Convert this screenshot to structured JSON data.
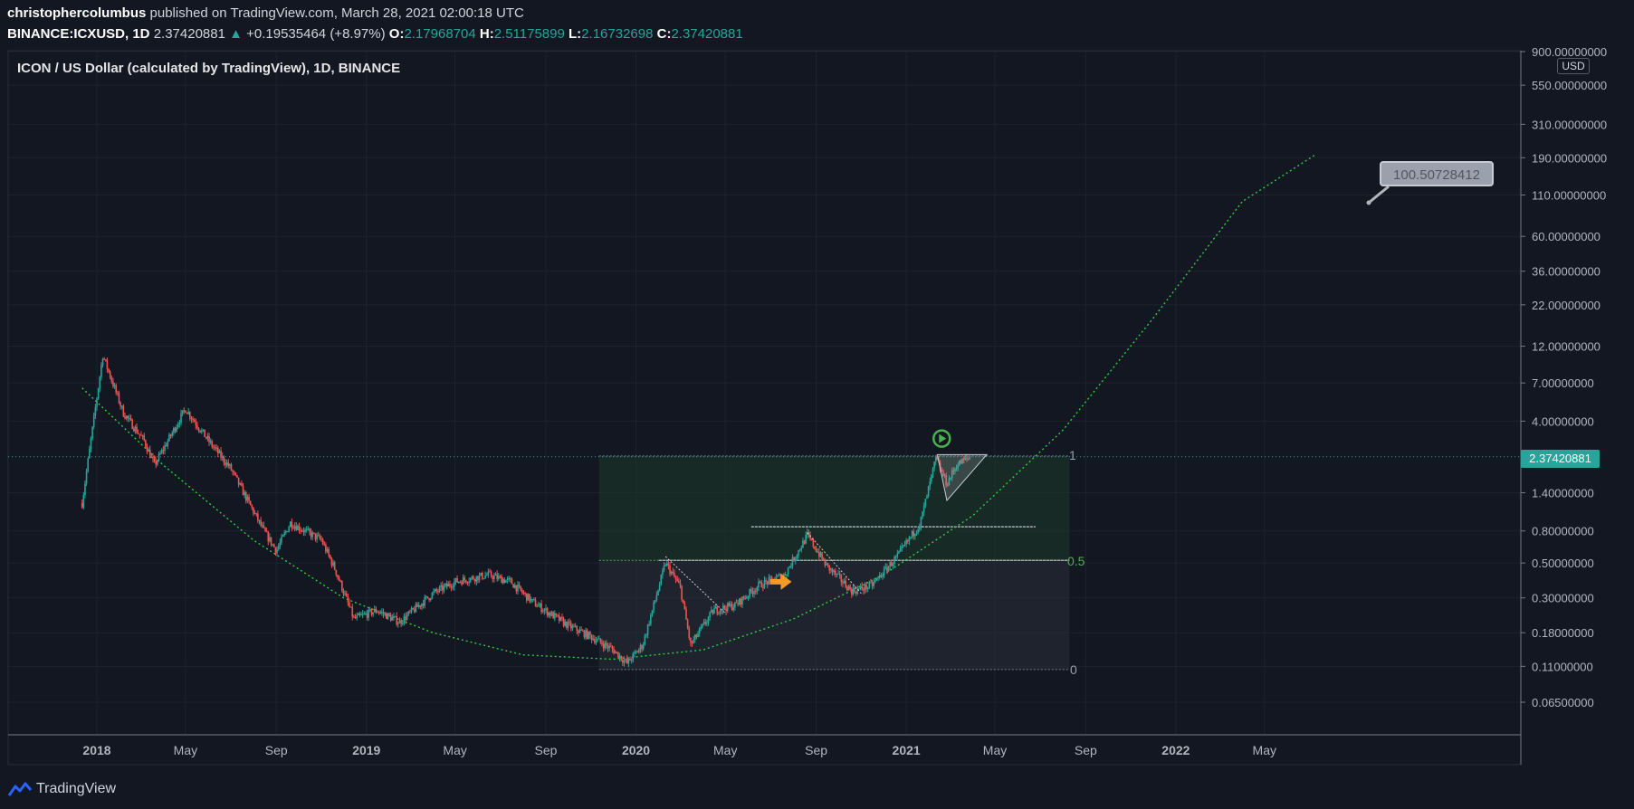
{
  "header": {
    "author": "christophercolumbus",
    "published": "published on TradingView.com, March 28, 2021 02:00:18 UTC",
    "symbol": "BINANCE:ICXUSD, 1D",
    "last": "2.37420881",
    "change": "+0.19535464 (+8.97%)",
    "o_label": "O:",
    "o_value": "2.17968704",
    "h_label": "H:",
    "h_value": "2.51175899",
    "l_label": "L:",
    "l_value": "2.16732698",
    "c_label": "C:",
    "c_value": "2.37420881"
  },
  "usd_label": "USD",
  "price_tag": "2.37420881",
  "callout_value": "100.50728412",
  "fib": {
    "level_1": "1",
    "level_05": "0.5",
    "level_0": "0"
  },
  "footer": {
    "brand": "TradingView"
  },
  "colors": {
    "background": "#131722",
    "up": "#26a69a",
    "down": "#ef5350",
    "curve": "#2ecc40",
    "fib_fill": "#1e3a2a",
    "arrow": "#f59a23"
  },
  "chart_data": {
    "type": "candlestick",
    "title": "ICON / US Dollar (calculated by TradingView), 1D, BINANCE",
    "scale": "log",
    "y_ticks": [
      "900.00000000",
      "550.00000000",
      "310.00000000",
      "190.00000000",
      "110.00000000",
      "60.00000000",
      "36.00000000",
      "22.00000000",
      "12.00000000",
      "7.00000000",
      "4.00000000",
      "1.40000000",
      "0.80000000",
      "0.50000000",
      "0.30000000",
      "0.18000000",
      "0.11000000",
      "0.06500000"
    ],
    "x_ticks": [
      "2018",
      "May",
      "Sep",
      "2019",
      "May",
      "Sep",
      "2020",
      "May",
      "Sep",
      "2021",
      "May",
      "Sep",
      "2022",
      "May"
    ],
    "last_price": 2.37420881,
    "price_path": [
      {
        "date": "2017-12-12",
        "close": 1.2
      },
      {
        "date": "2018-01-09",
        "close": 10.5
      },
      {
        "date": "2018-02-06",
        "close": 4.5
      },
      {
        "date": "2018-03-06",
        "close": 3.0
      },
      {
        "date": "2018-03-20",
        "close": 2.1
      },
      {
        "date": "2018-05-01",
        "close": 4.8
      },
      {
        "date": "2018-06-01",
        "close": 3.0
      },
      {
        "date": "2018-07-01",
        "close": 2.0
      },
      {
        "date": "2018-08-15",
        "close": 0.8
      },
      {
        "date": "2018-09-01",
        "close": 0.6
      },
      {
        "date": "2018-09-20",
        "close": 0.9
      },
      {
        "date": "2018-11-01",
        "close": 0.7
      },
      {
        "date": "2018-11-20",
        "close": 0.45
      },
      {
        "date": "2018-12-15",
        "close": 0.22
      },
      {
        "date": "2019-01-15",
        "close": 0.25
      },
      {
        "date": "2019-02-15",
        "close": 0.21
      },
      {
        "date": "2019-04-01",
        "close": 0.32
      },
      {
        "date": "2019-05-01",
        "close": 0.38
      },
      {
        "date": "2019-06-15",
        "close": 0.42
      },
      {
        "date": "2019-07-15",
        "close": 0.38
      },
      {
        "date": "2019-08-15",
        "close": 0.28
      },
      {
        "date": "2019-10-01",
        "close": 0.2
      },
      {
        "date": "2019-11-01",
        "close": 0.17
      },
      {
        "date": "2019-12-01",
        "close": 0.14
      },
      {
        "date": "2019-12-20",
        "close": 0.115
      },
      {
        "date": "2020-01-10",
        "close": 0.15
      },
      {
        "date": "2020-02-10",
        "close": 0.5
      },
      {
        "date": "2020-03-01",
        "close": 0.35
      },
      {
        "date": "2020-03-15",
        "close": 0.15
      },
      {
        "date": "2020-04-15",
        "close": 0.25
      },
      {
        "date": "2020-05-15",
        "close": 0.27
      },
      {
        "date": "2020-06-15",
        "close": 0.36
      },
      {
        "date": "2020-07-20",
        "close": 0.42
      },
      {
        "date": "2020-08-20",
        "close": 0.75
      },
      {
        "date": "2020-09-15",
        "close": 0.48
      },
      {
        "date": "2020-10-20",
        "close": 0.33
      },
      {
        "date": "2020-11-15",
        "close": 0.36
      },
      {
        "date": "2020-12-20",
        "close": 0.55
      },
      {
        "date": "2021-01-20",
        "close": 0.9
      },
      {
        "date": "2021-02-10",
        "close": 2.3
      },
      {
        "date": "2021-02-25",
        "close": 1.6
      },
      {
        "date": "2021-03-10",
        "close": 2.1
      },
      {
        "date": "2021-03-28",
        "close": 2.37
      }
    ],
    "curve": [
      {
        "date": "2017-12-12",
        "value": 6.5
      },
      {
        "date": "2018-04-01",
        "value": 2.1
      },
      {
        "date": "2018-08-01",
        "value": 0.7
      },
      {
        "date": "2018-12-01",
        "value": 0.3
      },
      {
        "date": "2019-04-01",
        "value": 0.18
      },
      {
        "date": "2019-08-01",
        "value": 0.13
      },
      {
        "date": "2019-12-01",
        "value": 0.122
      },
      {
        "date": "2020-04-01",
        "value": 0.14
      },
      {
        "date": "2020-08-01",
        "value": 0.22
      },
      {
        "date": "2020-12-01",
        "value": 0.42
      },
      {
        "date": "2021-04-01",
        "value": 1.0
      },
      {
        "date": "2021-08-01",
        "value": 3.5
      },
      {
        "date": "2021-12-01",
        "value": 18
      },
      {
        "date": "2022-04-01",
        "value": 100
      },
      {
        "date": "2022-07-10",
        "value": 200
      }
    ],
    "fib_retracement": {
      "start": "2019-11-12",
      "end": "2021-08-10",
      "top": 2.4,
      "mid": 0.52,
      "bottom": 0.105
    },
    "horizontal_lines": [
      {
        "from": "2020-06-05",
        "to": "2021-06-25",
        "value": 0.85
      },
      {
        "from": "2020-02-01",
        "to": "2021-08-10",
        "value": 0.52
      }
    ],
    "callout": {
      "value": "100.50728412",
      "anchor_date": "2022-03-25",
      "anchor_price": 100
    }
  }
}
